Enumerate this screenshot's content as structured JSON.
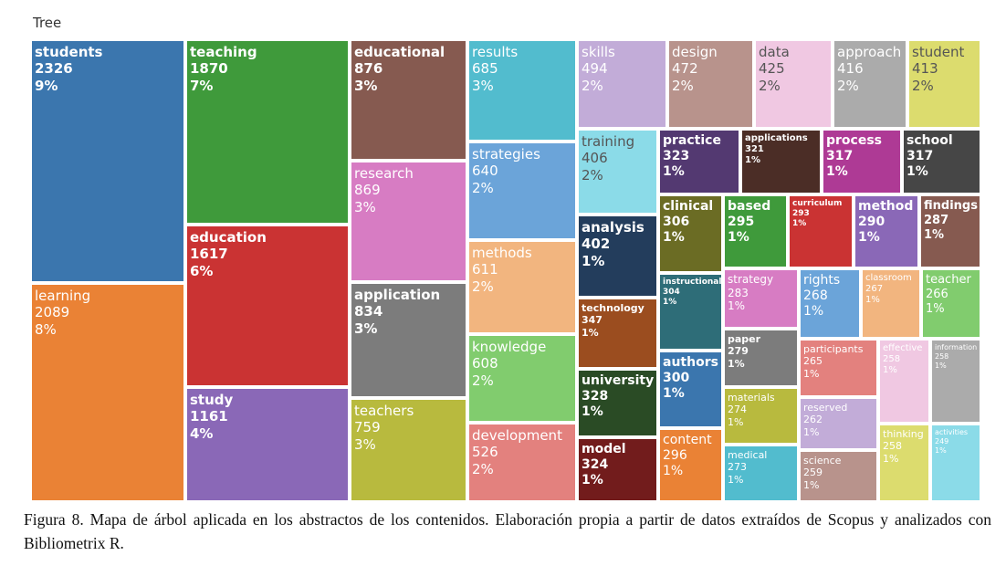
{
  "header": {
    "title": "Tree"
  },
  "caption": "Figura 8. Mapa de árbol aplicada en los abstractos de los contenidos. Elaboración propia a partir de datos extraídos de Scopus y analizados con Bibliometrix R.",
  "chart_data": {
    "type": "treemap",
    "title": "Tree",
    "items": [
      {
        "label": "students",
        "value": 2326,
        "percent": "9%",
        "color": "#3b76ae"
      },
      {
        "label": "learning",
        "value": 2089,
        "percent": "8%",
        "color": "#ea8235"
      },
      {
        "label": "teaching",
        "value": 1870,
        "percent": "7%",
        "color": "#3f9a3b"
      },
      {
        "label": "education",
        "value": 1617,
        "percent": "6%",
        "color": "#ca3333"
      },
      {
        "label": "study",
        "value": 1161,
        "percent": "4%",
        "color": "#8a68b7"
      },
      {
        "label": "educational",
        "value": 876,
        "percent": "3%",
        "color": "#865a50"
      },
      {
        "label": "research",
        "value": 869,
        "percent": "3%",
        "color": "#d77cc3"
      },
      {
        "label": "application",
        "value": 834,
        "percent": "3%",
        "color": "#7c7c7c"
      },
      {
        "label": "teachers",
        "value": 759,
        "percent": "3%",
        "color": "#b8ba3e"
      },
      {
        "label": "results",
        "value": 685,
        "percent": "3%",
        "color": "#52bcce"
      },
      {
        "label": "strategies",
        "value": 640,
        "percent": "2%",
        "color": "#6ba4d9"
      },
      {
        "label": "methods",
        "value": 611,
        "percent": "2%",
        "color": "#f2b57f"
      },
      {
        "label": "knowledge",
        "value": 608,
        "percent": "2%",
        "color": "#81cc6e"
      },
      {
        "label": "development",
        "value": 526,
        "percent": "2%",
        "color": "#e3817e"
      },
      {
        "label": "skills",
        "value": 494,
        "percent": "2%",
        "color": "#c2acd8"
      },
      {
        "label": "design",
        "value": 472,
        "percent": "2%",
        "color": "#b8938c"
      },
      {
        "label": "data",
        "value": 425,
        "percent": "2%",
        "color": "#f0c8e2"
      },
      {
        "label": "approach",
        "value": 416,
        "percent": "2%",
        "color": "#ababab"
      },
      {
        "label": "student",
        "value": 413,
        "percent": "2%",
        "color": "#dcdc6e"
      },
      {
        "label": "training",
        "value": 406,
        "percent": "2%",
        "color": "#8bdbe8"
      },
      {
        "label": "analysis",
        "value": 402,
        "percent": "1%",
        "color": "#233d5c"
      },
      {
        "label": "technology",
        "value": 347,
        "percent": "1%",
        "color": "#9b4d1f"
      },
      {
        "label": "university",
        "value": 328,
        "percent": "1%",
        "color": "#2a4b25"
      },
      {
        "label": "model",
        "value": 324,
        "percent": "1%",
        "color": "#721c1c"
      },
      {
        "label": "practice",
        "value": 323,
        "percent": "1%",
        "color": "#533971"
      },
      {
        "label": "applications",
        "value": 321,
        "percent": "1%",
        "color": "#4b2d26"
      },
      {
        "label": "process",
        "value": 317,
        "percent": "1%",
        "color": "#ae3a95"
      },
      {
        "label": "school",
        "value": 317,
        "percent": "1%",
        "color": "#464646"
      },
      {
        "label": "clinical",
        "value": 306,
        "percent": "1%",
        "color": "#6b6c24"
      },
      {
        "label": "instructional",
        "value": 304,
        "percent": "1%",
        "color": "#2e6d78"
      },
      {
        "label": "authors",
        "value": 300,
        "percent": "1%",
        "color": "#3b76ae"
      },
      {
        "label": "content",
        "value": 296,
        "percent": "1%",
        "color": "#ea8235"
      },
      {
        "label": "based",
        "value": 295,
        "percent": "1%",
        "color": "#3f9a3b"
      },
      {
        "label": "curriculum",
        "value": 293,
        "percent": "1%",
        "color": "#ca3333"
      },
      {
        "label": "method",
        "value": 290,
        "percent": "1%",
        "color": "#8a68b7"
      },
      {
        "label": "findings",
        "value": 287,
        "percent": "1%",
        "color": "#865a50"
      },
      {
        "label": "strategy",
        "value": 283,
        "percent": "1%",
        "color": "#d77cc3"
      },
      {
        "label": "paper",
        "value": 279,
        "percent": "1%",
        "color": "#7c7c7c"
      },
      {
        "label": "materials",
        "value": 274,
        "percent": "1%",
        "color": "#b8ba3e"
      },
      {
        "label": "medical",
        "value": 273,
        "percent": "1%",
        "color": "#52bcce"
      },
      {
        "label": "rights",
        "value": 268,
        "percent": "1%",
        "color": "#6ba4d9"
      },
      {
        "label": "classroom",
        "value": 267,
        "percent": "1%",
        "color": "#f2b57f"
      },
      {
        "label": "teacher",
        "value": 266,
        "percent": "1%",
        "color": "#81cc6e"
      },
      {
        "label": "participants",
        "value": 265,
        "percent": "1%",
        "color": "#e3817e"
      },
      {
        "label": "reserved",
        "value": 262,
        "percent": "1%",
        "color": "#c2acd8"
      },
      {
        "label": "science",
        "value": 259,
        "percent": "1%",
        "color": "#b8938c"
      },
      {
        "label": "effective",
        "value": 258,
        "percent": "1%",
        "color": "#f0c8e2"
      },
      {
        "label": "thinking",
        "value": 258,
        "percent": "1%",
        "color": "#dcdc6e"
      },
      {
        "label": "information",
        "value": 258,
        "percent": "1%",
        "color": "#ababab"
      },
      {
        "label": "activities",
        "value": 249,
        "percent": "1%",
        "color": "#8bdbe8"
      }
    ]
  }
}
